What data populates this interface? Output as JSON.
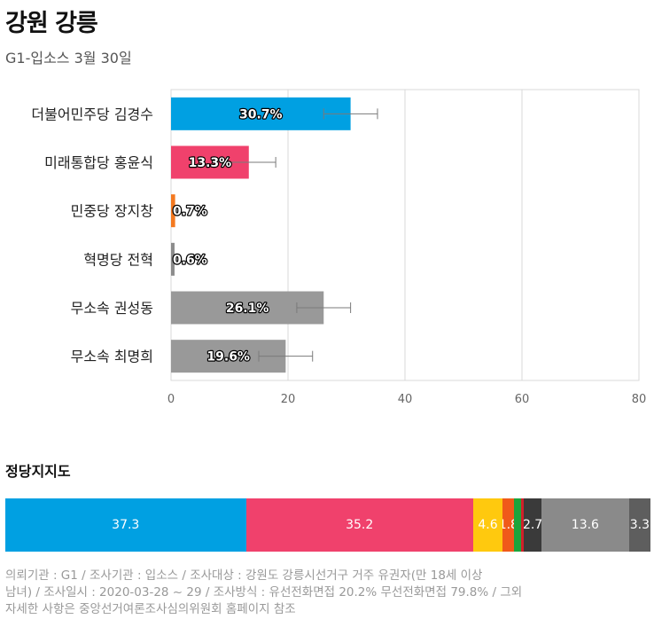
{
  "header": {
    "title": "강원 강릉",
    "subtitle": "G1-입소스 3월 30일"
  },
  "chart_data": [
    {
      "type": "bar",
      "orientation": "horizontal",
      "categories": [
        "더불어민주당 김경수",
        "미래통합당 홍윤식",
        "민중당 장지창",
        "혁명당 전혁",
        "무소속 권성동",
        "무소속 최명희"
      ],
      "values": [
        30.7,
        13.3,
        0.7,
        0.6,
        26.1,
        19.6
      ],
      "value_labels": [
        "30.7%",
        "13.3%",
        "0.7%",
        "0.6%",
        "26.1%",
        "19.6%"
      ],
      "error_bars": [
        [
          26.1,
          35.3
        ],
        [
          8.7,
          17.9
        ],
        null,
        null,
        [
          21.5,
          30.7
        ],
        [
          15.0,
          24.2
        ]
      ],
      "colors": [
        "#00a0e2",
        "#f0416c",
        "#f47920",
        "#8c8c8c",
        "#999999",
        "#999999"
      ],
      "xlim": [
        0,
        80
      ],
      "xticks": [
        "0",
        "20",
        "40",
        "60",
        "80"
      ],
      "grid": true
    },
    {
      "type": "bar",
      "orientation": "stacked-horizontal",
      "title": "정당지지도",
      "values": [
        37.3,
        35.2,
        4.6,
        1.8,
        1.0,
        0.5,
        2.7,
        13.6,
        3.3
      ],
      "labels": [
        "37.3",
        "35.2",
        "4.6",
        "1.8",
        "",
        "",
        "2.7",
        "13.6",
        "3.3"
      ],
      "colors": [
        "#00a0e2",
        "#f0416c",
        "#ffc90e",
        "#f05a1a",
        "#1ba53c",
        "#d0202a",
        "#3a3a3a",
        "#8a8a8a",
        "#5e5e5e"
      ]
    }
  ],
  "footer": {
    "line1": "의뢰기관 : G1 / 조사기관 : 입소스 / 조사대상 : 강원도 강릉시선거구 거주 유권자(만 18세 이상",
    "line2": "남녀) / 조사일시 : 2020-03-28 ~ 29 / 조사방식 : 유선전화면접 20.2% 무선전화면접 79.8% / 그외",
    "line3": "자세한 사항은 중앙선거여론조사심의위원회 홈페이지 참조"
  }
}
